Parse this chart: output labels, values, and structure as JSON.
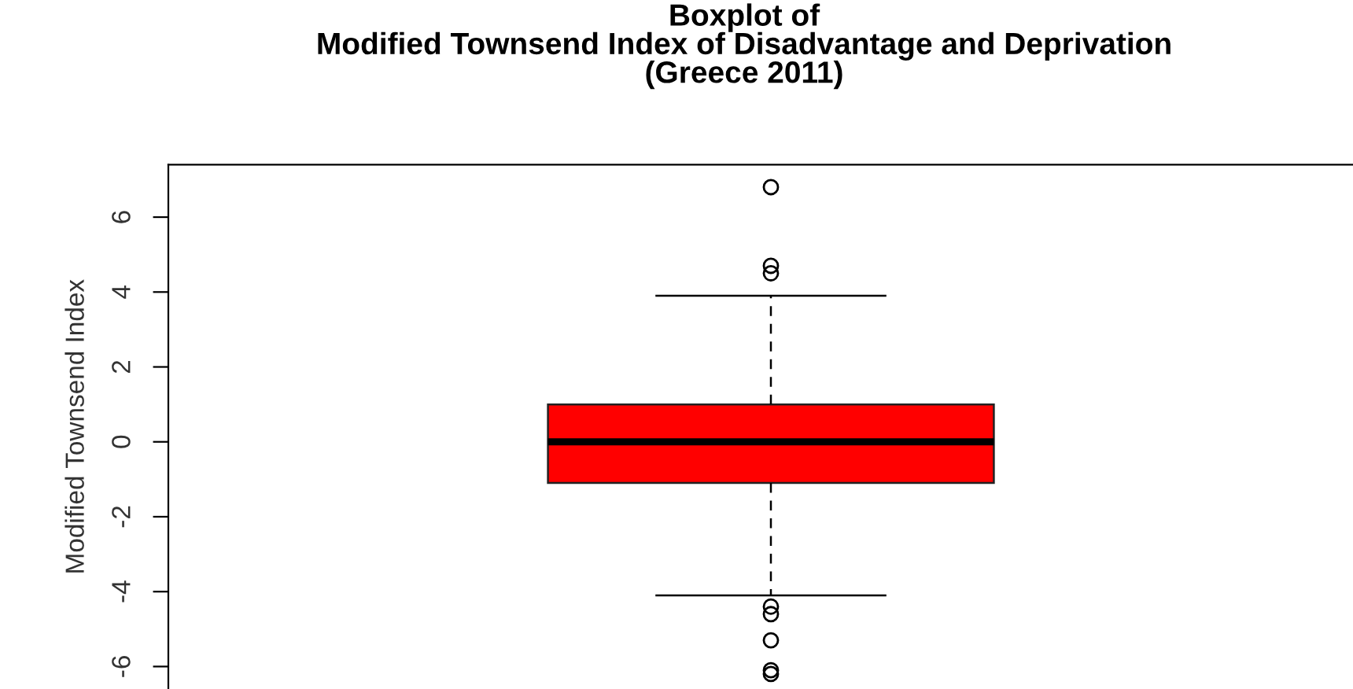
{
  "chart_data": {
    "type": "box",
    "title": "Boxplot of\nModified Townsend Index of Disadvantage and Deprivation\n(Greece 2011)",
    "ylabel": "Modified Townsend Index",
    "categories": [
      null
    ],
    "series": [
      {
        "color": "#ff0000",
        "boxes": [
          {
            "low": -4.1,
            "q1": -1.1,
            "median": 0.0,
            "q3": 1.0,
            "high": 3.9,
            "outliers": [
              6.8,
              4.7,
              4.5,
              -4.4,
              -4.6,
              -5.3,
              -6.1,
              -6.2
            ]
          }
        ]
      }
    ],
    "ylim": [
      -6.6,
      7.4
    ],
    "yticks": [
      -6,
      -4,
      -2,
      0,
      2,
      4,
      6
    ],
    "grid": false,
    "marker": "circle",
    "tick_labels": "y"
  }
}
